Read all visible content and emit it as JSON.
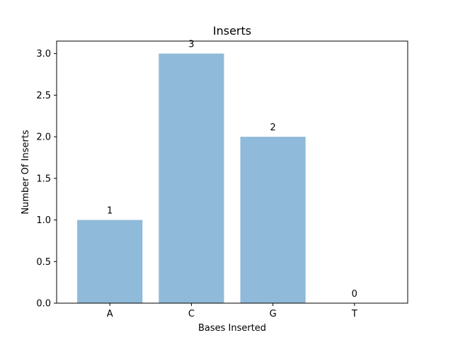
{
  "chart_data": {
    "type": "bar",
    "title": "Inserts",
    "xlabel": "Bases Inserted",
    "ylabel": "Number Of Inserts",
    "categories": [
      "A",
      "C",
      "G",
      "T"
    ],
    "values": [
      1,
      3,
      2,
      0
    ],
    "data_labels": [
      "1",
      "3",
      "2",
      "0"
    ],
    "ylim": [
      0,
      3.15
    ],
    "yticks": [
      0.0,
      0.5,
      1.0,
      1.5,
      2.0,
      2.5,
      3.0
    ],
    "ytick_labels": [
      "0.0",
      "0.5",
      "1.0",
      "1.5",
      "2.0",
      "2.5",
      "3.0"
    ],
    "grid": false,
    "bar_color": "#8fbad9"
  }
}
